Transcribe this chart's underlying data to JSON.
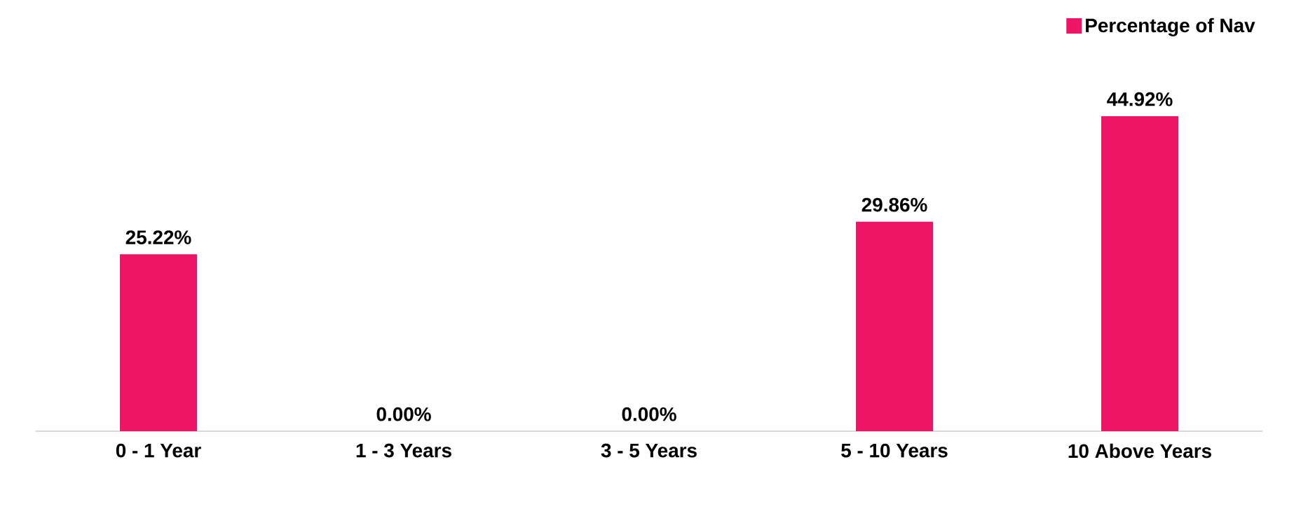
{
  "chart_data": {
    "type": "bar",
    "categories": [
      "0 - 1 Year",
      "1 - 3 Years",
      "3 - 5 Years",
      "5 - 10 Years",
      "10 Above Years"
    ],
    "series": [
      {
        "name": "Percentage of Nav",
        "color": "#ee1566",
        "values": [
          25.22,
          0,
          0,
          29.86,
          44.92
        ],
        "value_labels": [
          "25.22%",
          "0.00%",
          "0.00%",
          "29.86%",
          "44.92%"
        ]
      }
    ],
    "legend": "top right"
  }
}
